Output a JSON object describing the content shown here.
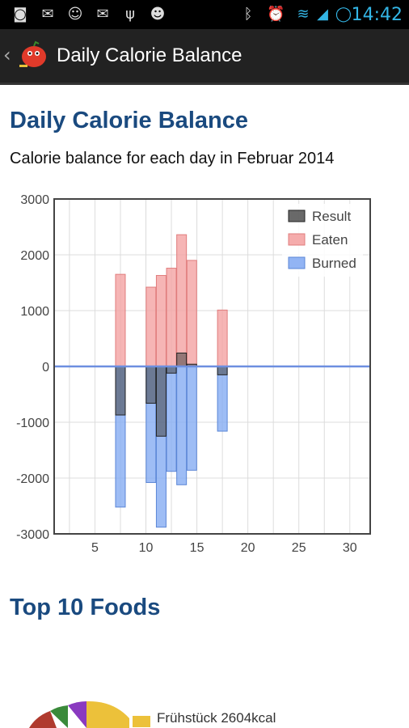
{
  "status_bar": {
    "time": "14:42",
    "icons": [
      "screenshot-icon",
      "mail-icon",
      "app-icon",
      "mail-icon",
      "usb-icon",
      "android-icon",
      "bluetooth-icon",
      "alarm-icon",
      "wifi-icon",
      "signal-icon",
      "sync-icon"
    ]
  },
  "action_bar": {
    "title": "Daily Calorie Balance"
  },
  "page": {
    "heading": "Daily Calorie Balance",
    "subtitle": "Calorie balance for each day in Februar 2014",
    "top_foods_heading": "Top 10 Foods"
  },
  "pie_legend": {
    "first_label": "Frühstück 2604kcal"
  },
  "colors": {
    "heading": "#1a4a7f",
    "eaten": "#f4a3a3",
    "burned": "#86acf3",
    "result": "#444444"
  },
  "chart_data": {
    "type": "bar",
    "xlim": [
      1,
      32
    ],
    "ylim": [
      -3000,
      3000
    ],
    "x_ticks": [
      5,
      10,
      15,
      20,
      25,
      30
    ],
    "y_ticks": [
      3000,
      2000,
      1000,
      0,
      -1000,
      -2000,
      -3000
    ],
    "legend": [
      "Result",
      "Eaten",
      "Burned"
    ],
    "legend_position": "top-right",
    "grid": true,
    "series": [
      {
        "name": "Eaten",
        "points": [
          [
            7.5,
            1650
          ],
          [
            10.5,
            1420
          ],
          [
            11.5,
            1630
          ],
          [
            12.5,
            1760
          ],
          [
            13.5,
            2360
          ],
          [
            14.5,
            1900
          ],
          [
            17.5,
            1010
          ]
        ]
      },
      {
        "name": "Burned",
        "points": [
          [
            7.5,
            -2520
          ],
          [
            10.5,
            -2080
          ],
          [
            11.5,
            -2880
          ],
          [
            12.5,
            -1880
          ],
          [
            13.5,
            -2120
          ],
          [
            14.5,
            -1860
          ],
          [
            17.5,
            -1160
          ]
        ]
      },
      {
        "name": "Result",
        "points": [
          [
            7.5,
            -870
          ],
          [
            10.5,
            -660
          ],
          [
            11.5,
            -1250
          ],
          [
            12.5,
            -120
          ],
          [
            13.5,
            240
          ],
          [
            14.5,
            40
          ],
          [
            17.5,
            -150
          ]
        ]
      }
    ]
  }
}
